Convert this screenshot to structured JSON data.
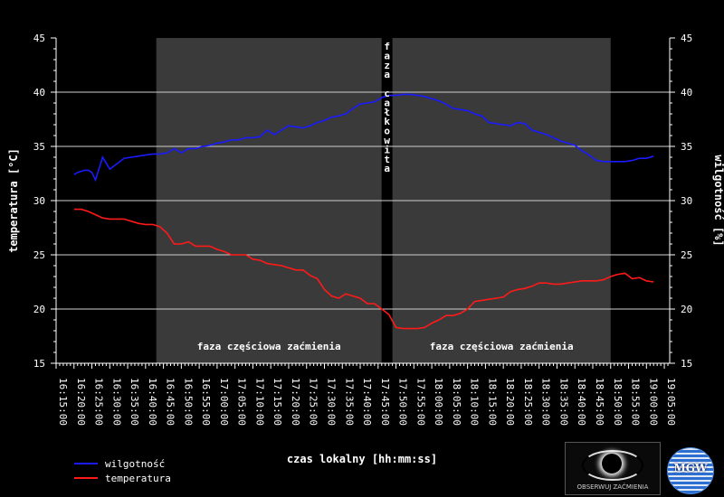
{
  "chart_data": {
    "type": "line",
    "xlabel": "czas lokalny [hh:mm:ss]",
    "ylabel_left": "temperatura [°C]",
    "ylabel_right": "wilgotność [%]",
    "ylim_left": [
      15,
      45
    ],
    "ylim_right": [
      15,
      45
    ],
    "y_ticks": [
      "15",
      "20",
      "25",
      "30",
      "35",
      "40",
      "45"
    ],
    "x_tick_labels": [
      "16:15:00",
      "16:20:00",
      "16:25:00",
      "16:30:00",
      "16:35:00",
      "16:40:00",
      "16:45:00",
      "16:50:00",
      "16:55:00",
      "17:00:00",
      "17:05:00",
      "17:10:00",
      "17:15:00",
      "17:20:00",
      "17:25:00",
      "17:30:00",
      "17:35:00",
      "17:40:00",
      "17:45:00",
      "17:50:00",
      "17:55:00",
      "18:00:00",
      "18:05:00",
      "18:10:00",
      "18:15:00",
      "18:20:00",
      "18:25:00",
      "18:30:00",
      "18:35:00",
      "18:40:00",
      "18:45:00",
      "18:50:00",
      "18:55:00",
      "19:00:00",
      "19:05:00"
    ],
    "phases": [
      {
        "label": "faza częściowa zaćmienia",
        "start": "16:43:00",
        "end": "17:46:00"
      },
      {
        "label": "faza całkowita",
        "start": "17:46:00",
        "end": "17:49:00"
      },
      {
        "label": "faza częściowa zaćmienia",
        "start": "17:49:00",
        "end": "18:50:00"
      }
    ],
    "phase_colors": {
      "partial": "#3a3a3a",
      "total": "#000000"
    },
    "grid": true,
    "legend_position": "bottom-left",
    "series": [
      {
        "name": "wilgotność",
        "color": "#1a1aff",
        "x": [
          "16:20:00",
          "16:21:00",
          "16:22:00",
          "16:23:00",
          "16:24:00",
          "16:25:00",
          "16:26:00",
          "16:28:00",
          "16:30:00",
          "16:32:00",
          "16:34:00",
          "16:36:00",
          "16:38:00",
          "16:40:00",
          "16:42:00",
          "16:44:00",
          "16:46:00",
          "16:48:00",
          "16:50:00",
          "16:52:00",
          "16:54:00",
          "16:56:00",
          "16:58:00",
          "17:00:00",
          "17:02:00",
          "17:04:00",
          "17:06:00",
          "17:08:00",
          "17:10:00",
          "17:12:00",
          "17:14:00",
          "17:16:00",
          "17:18:00",
          "17:20:00",
          "17:22:00",
          "17:24:00",
          "17:26:00",
          "17:28:00",
          "17:30:00",
          "17:32:00",
          "17:34:00",
          "17:36:00",
          "17:38:00",
          "17:40:00",
          "17:42:00",
          "17:44:00",
          "17:46:00",
          "17:48:00",
          "17:50:00",
          "17:52:00",
          "17:54:00",
          "17:56:00",
          "17:58:00",
          "18:00:00",
          "18:02:00",
          "18:04:00",
          "18:06:00",
          "18:08:00",
          "18:10:00",
          "18:12:00",
          "18:14:00",
          "18:16:00",
          "18:18:00",
          "18:20:00",
          "18:22:00",
          "18:24:00",
          "18:26:00",
          "18:28:00",
          "18:30:00",
          "18:32:00",
          "18:34:00",
          "18:36:00",
          "18:38:00",
          "18:40:00",
          "18:42:00",
          "18:44:00",
          "18:46:00",
          "18:48:00",
          "18:50:00",
          "18:52:00",
          "18:54:00",
          "18:56:00",
          "18:58:00",
          "19:00:00",
          "19:02:00"
        ],
        "values": [
          32.4,
          32.6,
          32.7,
          32.8,
          32.8,
          32.6,
          31.9,
          34.0,
          32.9,
          33.4,
          33.9,
          34.0,
          34.1,
          34.2,
          34.3,
          34.3,
          34.4,
          34.8,
          34.4,
          34.8,
          34.8,
          35.0,
          35.1,
          35.3,
          35.4,
          35.6,
          35.6,
          35.8,
          35.8,
          35.9,
          36.5,
          36.1,
          36.5,
          36.9,
          36.8,
          36.7,
          36.9,
          37.2,
          37.4,
          37.7,
          37.8,
          38.0,
          38.5,
          38.9,
          39.0,
          39.1,
          39.5,
          39.7,
          39.7,
          39.8,
          39.8,
          39.7,
          39.6,
          39.4,
          39.2,
          38.9,
          38.5,
          38.4,
          38.3,
          38.0,
          37.8,
          37.2,
          37.1,
          37.0,
          36.9,
          37.2,
          37.1,
          36.5,
          36.3,
          36.1,
          35.8,
          35.5,
          35.3,
          35.1,
          34.6,
          34.2,
          33.7,
          33.6,
          33.6,
          33.6,
          33.6,
          33.7,
          33.9,
          33.9,
          34.1
        ]
      },
      {
        "name": "temperatura",
        "color": "#ff1a1a",
        "x": [
          "16:20:00",
          "16:22:00",
          "16:24:00",
          "16:26:00",
          "16:28:00",
          "16:30:00",
          "16:32:00",
          "16:34:00",
          "16:36:00",
          "16:38:00",
          "16:40:00",
          "16:42:00",
          "16:44:00",
          "16:46:00",
          "16:48:00",
          "16:50:00",
          "16:52:00",
          "16:54:00",
          "16:56:00",
          "16:58:00",
          "17:00:00",
          "17:02:00",
          "17:04:00",
          "17:06:00",
          "17:08:00",
          "17:10:00",
          "17:12:00",
          "17:14:00",
          "17:16:00",
          "17:18:00",
          "17:20:00",
          "17:22:00",
          "17:24:00",
          "17:26:00",
          "17:28:00",
          "17:30:00",
          "17:32:00",
          "17:34:00",
          "17:36:00",
          "17:38:00",
          "17:40:00",
          "17:42:00",
          "17:44:00",
          "17:46:00",
          "17:48:00",
          "17:50:00",
          "17:52:00",
          "17:54:00",
          "17:56:00",
          "17:58:00",
          "18:00:00",
          "18:02:00",
          "18:04:00",
          "18:06:00",
          "18:08:00",
          "18:10:00",
          "18:12:00",
          "18:14:00",
          "18:16:00",
          "18:18:00",
          "18:20:00",
          "18:22:00",
          "18:24:00",
          "18:26:00",
          "18:28:00",
          "18:30:00",
          "18:32:00",
          "18:34:00",
          "18:36:00",
          "18:38:00",
          "18:40:00",
          "18:42:00",
          "18:44:00",
          "18:46:00",
          "18:48:00",
          "18:50:00",
          "18:52:00",
          "18:54:00",
          "18:56:00",
          "18:58:00",
          "19:00:00",
          "19:02:00"
        ],
        "values": [
          29.2,
          29.2,
          29.0,
          28.7,
          28.4,
          28.3,
          28.3,
          28.3,
          28.1,
          27.9,
          27.8,
          27.8,
          27.6,
          27.0,
          26.0,
          26.0,
          26.2,
          25.8,
          25.8,
          25.8,
          25.5,
          25.3,
          25.0,
          25.0,
          25.0,
          24.6,
          24.5,
          24.2,
          24.1,
          24.0,
          23.8,
          23.6,
          23.6,
          23.1,
          22.8,
          21.8,
          21.2,
          21.0,
          21.4,
          21.2,
          21.0,
          20.5,
          20.5,
          20.0,
          19.5,
          18.3,
          18.2,
          18.2,
          18.2,
          18.3,
          18.7,
          19.0,
          19.4,
          19.4,
          19.6,
          20.0,
          20.7,
          20.8,
          20.9,
          21.0,
          21.1,
          21.6,
          21.8,
          21.9,
          22.1,
          22.4,
          22.4,
          22.3,
          22.3,
          22.4,
          22.5,
          22.6,
          22.6,
          22.6,
          22.7,
          23.0,
          23.2,
          23.3,
          22.8,
          22.9,
          22.6,
          22.5
        ]
      }
    ]
  },
  "logos": {
    "eclipse_logo_text": "OBSERWUJ ZAĆMIENIA",
    "globe_logo_text": "MGW"
  },
  "icons": [
    "eclipse-eye-logo-icon",
    "globe-logo-icon"
  ]
}
